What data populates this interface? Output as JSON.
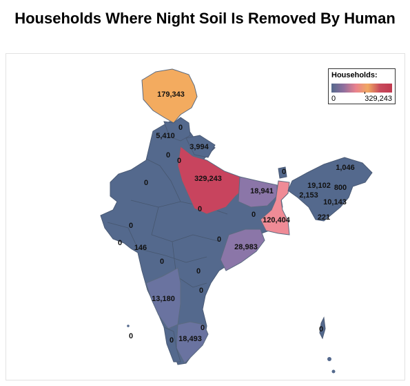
{
  "title": "Households Where Night Soil Is Removed By Human",
  "legend": {
    "title": "Households:",
    "min_label": "0",
    "max_label": "329,243",
    "colors": [
      "#54698d",
      "#8f6f9e",
      "#e9818e",
      "#f0a862",
      "#c84a5c"
    ]
  },
  "colors": {
    "zero": "#54698d",
    "low": "#6a73a0",
    "mid_low": "#8b76a8",
    "pink": "#ef8b96",
    "orange": "#f3ab5f",
    "red": "#c8445e",
    "border": "#5a6a80"
  },
  "labels": {
    "jk": "179,343",
    "himachal": "0",
    "punjab": "5,410",
    "uttarakhand": "3,994",
    "haryana": "0",
    "delhi": "0",
    "up": "329,243",
    "rajasthan": "0",
    "bihar": "18,941",
    "sikkim": "0",
    "arunachal": "1,046",
    "assam": "19,102",
    "nagaland": "800",
    "meghalaya": "2,153",
    "manipur": "10,143",
    "mizoram": "221",
    "jharkhand": "0",
    "wb": "120,404",
    "gujarat": "0",
    "diu": "0",
    "mp_west": "146",
    "mp": "0",
    "chhattisgarh": "0",
    "odisha": "28,983",
    "maharashtra": "0",
    "telangana": "0",
    "ap": "0",
    "karnataka": "13,180",
    "goa": "0",
    "lakshadweep": "0",
    "puducherry": "0",
    "kerala": "0",
    "tamilnadu": "18,493",
    "andaman": "0"
  }
}
